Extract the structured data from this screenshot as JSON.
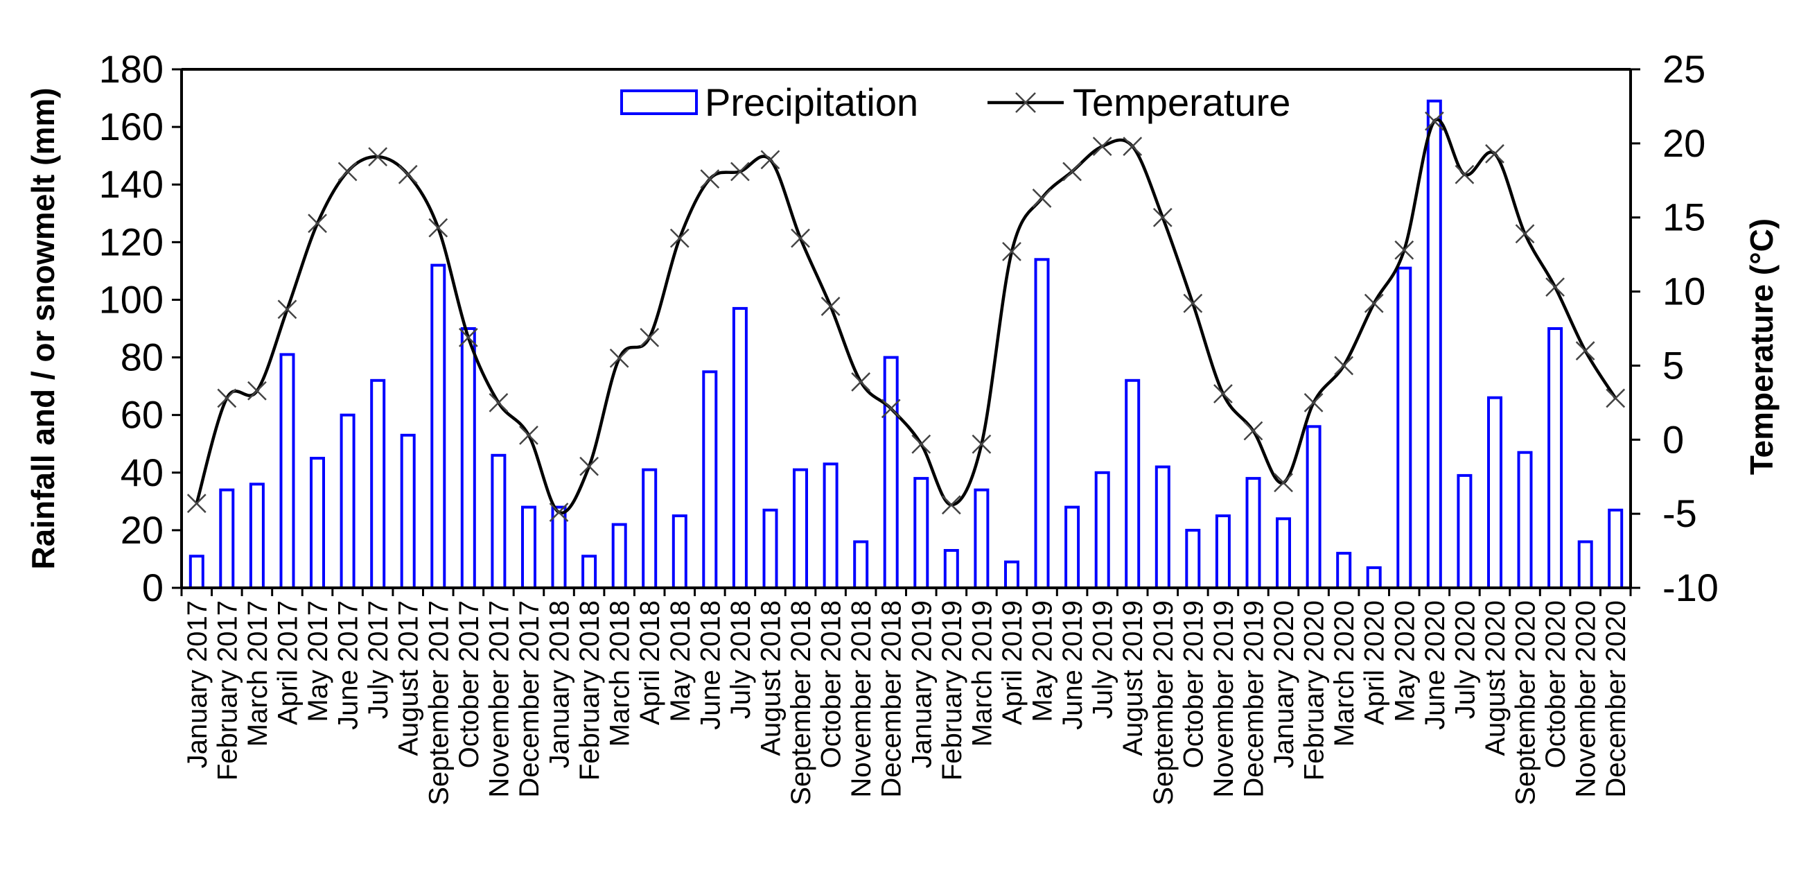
{
  "chart_data": {
    "type": "bar+line",
    "title": "",
    "ylabel": "Rainfall and / or snowmelt (mm)",
    "y2label": "Temperature (°C)",
    "ylim": [
      0,
      180
    ],
    "y2lim": [
      -10,
      25
    ],
    "yticks": [
      "0",
      "20",
      "40",
      "60",
      "80",
      "100",
      "120",
      "140",
      "160",
      "180"
    ],
    "y2ticks": [
      "-10",
      "-5",
      "0",
      "5",
      "10",
      "15",
      "20",
      "25"
    ],
    "categories": [
      "January 2017",
      "February 2017",
      "March 2017",
      "April 2017",
      "May 2017",
      "June 2017",
      "July 2017",
      "August 2017",
      "September 2017",
      "October 2017",
      "November 2017",
      "December 2017",
      "January 2018",
      "February 2018",
      "March 2018",
      "April 2018",
      "May 2018",
      "June 2018",
      "July 2018",
      "August 2018",
      "September 2018",
      "October 2018",
      "November 2018",
      "December 2018",
      "January 2019",
      "February 2019",
      "March 2019",
      "April 2019",
      "May 2019",
      "June 2019",
      "July 2019",
      "August 2019",
      "September 2019",
      "October 2019",
      "November 2019",
      "December 2019",
      "January 2020",
      "February 2020",
      "March 2020",
      "April 2020",
      "May 2020",
      "June 2020",
      "July 2020",
      "August 2020",
      "September 2020",
      "October 2020",
      "November 2020",
      "December 2020"
    ],
    "series": [
      {
        "name": "Precipitation",
        "kind": "bar",
        "axis": "left",
        "color": "#0000ff",
        "values": [
          11,
          34,
          36,
          81,
          45,
          60,
          72,
          53,
          112,
          90,
          46,
          28,
          28,
          11,
          22,
          41,
          25,
          75,
          97,
          27,
          41,
          43,
          16,
          80,
          38,
          13,
          34,
          9,
          114,
          28,
          40,
          72,
          42,
          20,
          25,
          38,
          24,
          56,
          12,
          7,
          111,
          169,
          39,
          66,
          47,
          90,
          16,
          27
        ]
      },
      {
        "name": "Temperature",
        "kind": "line",
        "axis": "right",
        "color": "#000000",
        "marker": "x",
        "values": [
          -4.3,
          2.8,
          3.3,
          8.8,
          14.6,
          18.1,
          19.1,
          17.9,
          14.3,
          6.9,
          2.5,
          0.3,
          -4.9,
          -1.8,
          5.5,
          6.9,
          13.6,
          17.6,
          18.1,
          18.9,
          13.6,
          9.0,
          3.9,
          2.1,
          -0.3,
          -4.4,
          -0.3,
          12.7,
          16.3,
          18.1,
          19.8,
          19.8,
          15.0,
          9.2,
          3.1,
          0.6,
          -2.9,
          2.5,
          5.0,
          9.2,
          12.8,
          21.5,
          17.9,
          19.3,
          13.9,
          10.3,
          6.0,
          2.8
        ]
      }
    ],
    "legend": {
      "position": "top-center",
      "items": [
        {
          "label": "Precipitation",
          "symbol": "bar-outline"
        },
        {
          "label": "Temperature",
          "symbol": "line-x"
        }
      ]
    },
    "grid": false
  }
}
